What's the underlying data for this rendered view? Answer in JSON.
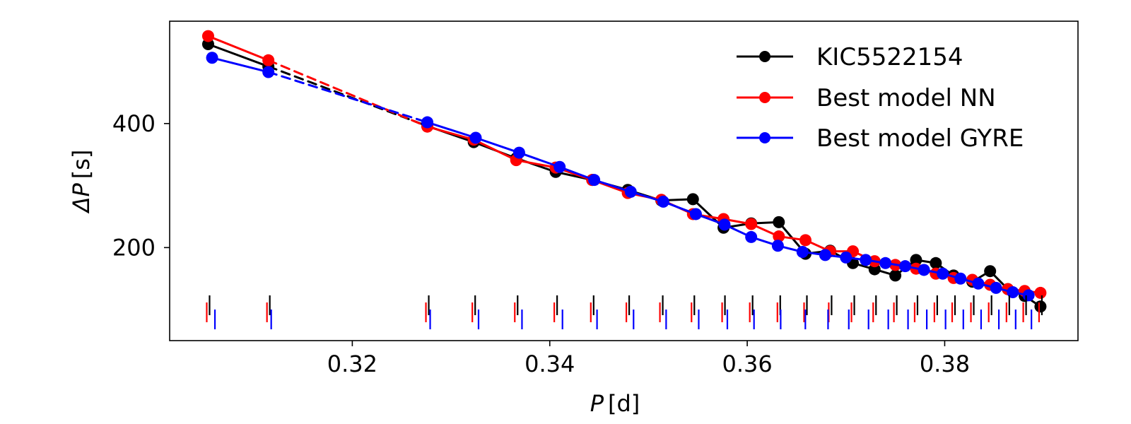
{
  "chart_data": {
    "type": "line",
    "xlabel_symbol": "P",
    "xlabel_unit": "[d]",
    "ylabel_symbol": "ΔP",
    "ylabel_unit": "[s]",
    "xlim": [
      0.3015,
      0.3935
    ],
    "ylim": [
      50,
      565
    ],
    "xticks": [
      0.32,
      0.34,
      0.36,
      0.38
    ],
    "xtick_labels": [
      "0.32",
      "0.34",
      "0.36",
      "0.38"
    ],
    "yticks": [
      200,
      400
    ],
    "ytick_labels": [
      "200",
      "400"
    ],
    "grid": false,
    "legend_position": "top-right",
    "dashed_gap": {
      "x_start": 0.3115,
      "x_end": 0.3275
    },
    "series": [
      {
        "name": "KIC5522154",
        "color": "#000000",
        "x": [
          0.3054,
          0.3115,
          0.3276,
          0.3323,
          0.3366,
          0.3406,
          0.3443,
          0.3479,
          0.3513,
          0.3545,
          0.3576,
          0.3604,
          0.3632,
          0.3659,
          0.3684,
          0.3707,
          0.3729,
          0.375,
          0.3771,
          0.3791,
          0.3809,
          0.3828,
          0.3846,
          0.3864,
          0.3881,
          0.3897
        ],
        "y": [
          528,
          492,
          396,
          370,
          344,
          322,
          309,
          293,
          276,
          278,
          232,
          239,
          241,
          190,
          195,
          175,
          165,
          155,
          180,
          175,
          155,
          145,
          162,
          133,
          122,
          105
        ]
      },
      {
        "name": "Best model NN",
        "color": "#ff0000",
        "x": [
          0.3054,
          0.3115,
          0.3276,
          0.3323,
          0.3366,
          0.3406,
          0.3443,
          0.3479,
          0.3513,
          0.3545,
          0.3576,
          0.3604,
          0.3632,
          0.3659,
          0.3684,
          0.3707,
          0.3729,
          0.375,
          0.3771,
          0.3791,
          0.3809,
          0.3828,
          0.3846,
          0.3864,
          0.3881,
          0.3897
        ],
        "y": [
          541,
          502,
          395,
          374,
          341,
          329,
          309,
          288,
          277,
          254,
          246,
          238,
          218,
          212,
          194,
          194,
          178,
          172,
          166,
          158,
          151,
          148,
          140,
          133,
          130,
          127
        ]
      },
      {
        "name": "Best model GYRE",
        "color": "#0000ff",
        "x": [
          0.3058,
          0.3115,
          0.3276,
          0.3325,
          0.3369,
          0.341,
          0.3445,
          0.3482,
          0.3515,
          0.3548,
          0.3577,
          0.3604,
          0.3631,
          0.3656,
          0.3679,
          0.37,
          0.372,
          0.374,
          0.376,
          0.3779,
          0.3798,
          0.3816,
          0.3834,
          0.3852,
          0.3869,
          0.3885
        ],
        "y": [
          506,
          483,
          402,
          377,
          353,
          330,
          309,
          290,
          274,
          254,
          237,
          217,
          203,
          193,
          188,
          184,
          180,
          175,
          170,
          164,
          158,
          150,
          142,
          135,
          128,
          123
        ]
      }
    ]
  }
}
